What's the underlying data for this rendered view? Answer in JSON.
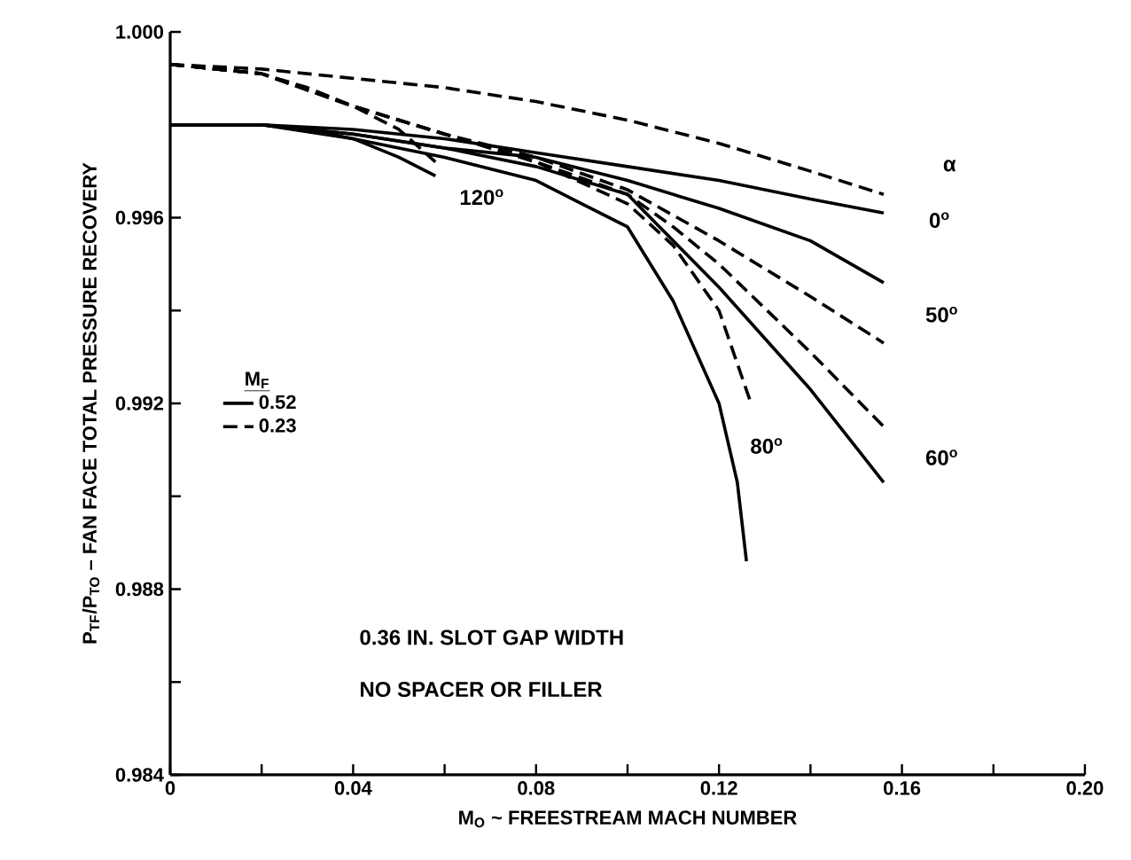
{
  "chart_data": {
    "type": "line",
    "xlabel": "M$_{O}$ ~ FREESTREAM MACH NUMBER",
    "ylabel": "P$_{TF}$/P$_{TO}$ – FAN FACE TOTAL PRESSURE RECOVERY",
    "legend_title": "M$_{F}$",
    "xlim": [
      0,
      0.2
    ],
    "ylim": [
      0.984,
      1.0
    ],
    "xticks": [
      0,
      {
        "value": 0.02,
        "label": null
      },
      0.04,
      {
        "value": 0.06,
        "label": null
      },
      0.08,
      {
        "value": 0.1,
        "label": null
      },
      0.12,
      {
        "value": 0.14,
        "label": null
      },
      0.16,
      {
        "value": 0.18,
        "label": null
      },
      {
        "value": 0.2,
        "label": "0.20"
      }
    ],
    "yticks": [
      0.984,
      {
        "value": 0.986,
        "label": null
      },
      0.988,
      {
        "value": 0.99,
        "label": null
      },
      0.992,
      {
        "value": 0.994,
        "label": null
      },
      0.996,
      {
        "value": 0.998,
        "label": null
      },
      {
        "value": 1.0,
        "label": "1.000"
      }
    ],
    "legend": "left",
    "marker": "none",
    "series": [
      {
        "name": "0.52",
        "color": "#000000",
        "line_style": "solid",
        "x": [
          0,
          0.02,
          0.04,
          0.06,
          0.08,
          0.1,
          0.12,
          0.14,
          0.156
        ],
        "values": [
          0.998,
          0.998,
          0.9979,
          0.9977,
          0.9974,
          0.9971,
          0.9968,
          0.9964,
          0.9961
        ]
      },
      {
        "color": "#000000",
        "line_style": "solid",
        "x": [
          0,
          0.02,
          0.04,
          0.06,
          0.08,
          0.1,
          0.12,
          0.14,
          0.156
        ],
        "values": [
          0.998,
          0.998,
          0.9978,
          0.9975,
          0.9973,
          0.9968,
          0.9962,
          0.9955,
          0.9946
        ]
      },
      {
        "color": "#000000",
        "line_style": "solid",
        "x": [
          0,
          0.02,
          0.04,
          0.06,
          0.08,
          0.1,
          0.11,
          0.12,
          0.14,
          0.156
        ],
        "values": [
          0.998,
          0.998,
          0.9978,
          0.9975,
          0.9971,
          0.9965,
          0.9955,
          0.9945,
          0.9923,
          0.9903
        ]
      },
      {
        "color": "#000000",
        "line_style": "solid",
        "x": [
          0,
          0.02,
          0.04,
          0.06,
          0.08,
          0.09,
          0.1,
          0.11,
          0.12,
          0.124,
          0.126
        ],
        "values": [
          0.998,
          0.998,
          0.9977,
          0.9973,
          0.9968,
          0.9963,
          0.9958,
          0.9942,
          0.992,
          0.9903,
          0.9886
        ]
      },
      {
        "color": "#000000",
        "line_style": "solid",
        "x": [
          0,
          0.02,
          0.03,
          0.04,
          0.05,
          0.058
        ],
        "values": [
          0.998,
          0.998,
          0.9979,
          0.9977,
          0.9973,
          0.9969
        ]
      },
      {
        "name": "0.23",
        "color": "#000000",
        "line_style": "dashed",
        "x": [
          0,
          0.02,
          0.04,
          0.06,
          0.08,
          0.1,
          0.12,
          0.14,
          0.156
        ],
        "values": [
          0.9993,
          0.9992,
          0.999,
          0.9988,
          0.9985,
          0.9981,
          0.9976,
          0.997,
          0.9965
        ]
      },
      {
        "color": "#000000",
        "line_style": "dashed",
        "x": [
          0,
          0.02,
          0.04,
          0.06,
          0.08,
          0.1,
          0.12,
          0.14,
          0.156
        ],
        "values": [
          0.9993,
          0.9991,
          0.9984,
          0.9978,
          0.9973,
          0.9966,
          0.9955,
          0.9943,
          0.9933
        ]
      },
      {
        "color": "#000000",
        "line_style": "dashed",
        "x": [
          0,
          0.02,
          0.04,
          0.06,
          0.08,
          0.1,
          0.11,
          0.12,
          0.14,
          0.156
        ],
        "values": [
          0.9993,
          0.9991,
          0.9984,
          0.9978,
          0.9972,
          0.9965,
          0.9958,
          0.995,
          0.9931,
          0.9915
        ]
      },
      {
        "color": "#000000",
        "line_style": "dashed",
        "x": [
          0,
          0.02,
          0.04,
          0.06,
          0.08,
          0.1,
          0.11,
          0.12,
          0.127
        ],
        "values": [
          0.9993,
          0.9991,
          0.9984,
          0.9978,
          0.9972,
          0.9963,
          0.9954,
          0.994,
          0.992
        ]
      },
      {
        "color": "#000000",
        "line_style": "dashed",
        "x": [
          0,
          0.02,
          0.03,
          0.04,
          0.05,
          0.058
        ],
        "values": [
          0.9993,
          0.9991,
          0.9988,
          0.9984,
          0.9979,
          0.9972
        ]
      }
    ],
    "annotations": [
      "α",
      {
        "text": "0$^{o}$",
        "x": 0.156,
        "y": 0.9961
      },
      {
        "text": "50$^{o}$",
        "x": 0.156,
        "y": 0.9946
      },
      {
        "text": "60$^{o}$",
        "x": 0.156,
        "y": 0.9903
      },
      {
        "text": "80$^{o}$",
        "x": 0.127,
        "y": 0.992
      },
      {
        "text": "120$^{o}$",
        "x": 0.058,
        "y": 0.9969
      },
      "0.36 IN. SLOT GAP WIDTH",
      "NO SPACER OR FILLER"
    ]
  }
}
